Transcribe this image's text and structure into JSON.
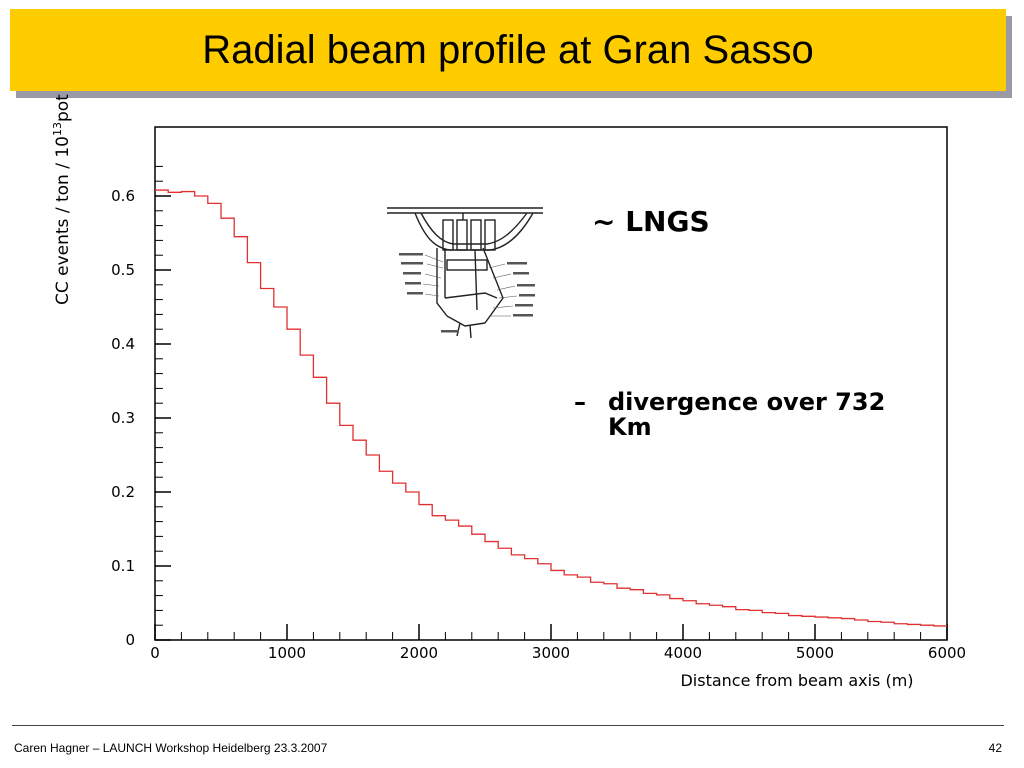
{
  "slide": {
    "title": "Radial beam profile at Gran Sasso",
    "footer_left": "Caren Hagner – LAUNCH Workshop Heidelberg 23.3.2007",
    "page_number": "42"
  },
  "callouts": {
    "lngs": "~ LNGS",
    "divergence_dash": "–",
    "divergence": "divergence over 732 Km"
  },
  "colors": {
    "title_bar": "#ffcc00",
    "histogram_line": "#e03030"
  },
  "chart_data": {
    "type": "line",
    "style": "step-histogram",
    "title": "",
    "xlabel": "Distance from beam axis (m)",
    "ylabel_main": "CC events / ton / 10",
    "ylabel_sup": "13",
    "ylabel_tail": "pot",
    "xlim": [
      0,
      6000
    ],
    "ylim": [
      0,
      0.65
    ],
    "x_ticks": [
      0,
      1000,
      2000,
      3000,
      4000,
      5000,
      6000
    ],
    "x_tick_labels": [
      "0",
      "1000",
      "2000",
      "3000",
      "4000",
      "5000",
      "6000"
    ],
    "y_ticks": [
      0,
      0.1,
      0.2,
      0.3,
      0.4,
      0.5,
      0.6
    ],
    "y_tick_labels": [
      "0",
      "0.1",
      "0.2",
      "0.3",
      "0.4",
      "0.5",
      "0.6"
    ],
    "grid": false,
    "series": [
      {
        "x": [
          0,
          100,
          200,
          300,
          400,
          500,
          600,
          700,
          800,
          900,
          1000,
          1100,
          1200,
          1300,
          1400,
          1500,
          1600,
          1700,
          1800,
          1900,
          2000,
          2100,
          2200,
          2300,
          2400,
          2500,
          2600,
          2700,
          2800,
          2900,
          3000,
          3100,
          3200,
          3300,
          3400,
          3500,
          3600,
          3700,
          3800,
          3900,
          4000,
          4100,
          4200,
          4300,
          4400,
          4500,
          4600,
          4700,
          4800,
          4900,
          5000,
          5100,
          5200,
          5300,
          5400,
          5500,
          5600,
          5700,
          5800,
          5900
        ],
        "y": [
          0.608,
          0.605,
          0.606,
          0.6,
          0.59,
          0.57,
          0.545,
          0.51,
          0.475,
          0.45,
          0.42,
          0.385,
          0.355,
          0.32,
          0.29,
          0.27,
          0.25,
          0.228,
          0.212,
          0.2,
          0.183,
          0.168,
          0.162,
          0.154,
          0.143,
          0.133,
          0.124,
          0.115,
          0.11,
          0.103,
          0.094,
          0.088,
          0.085,
          0.078,
          0.076,
          0.07,
          0.068,
          0.063,
          0.061,
          0.056,
          0.053,
          0.049,
          0.047,
          0.045,
          0.041,
          0.04,
          0.037,
          0.036,
          0.033,
          0.032,
          0.031,
          0.03,
          0.029,
          0.027,
          0.025,
          0.024,
          0.022,
          0.021,
          0.02,
          0.019
        ]
      }
    ]
  }
}
